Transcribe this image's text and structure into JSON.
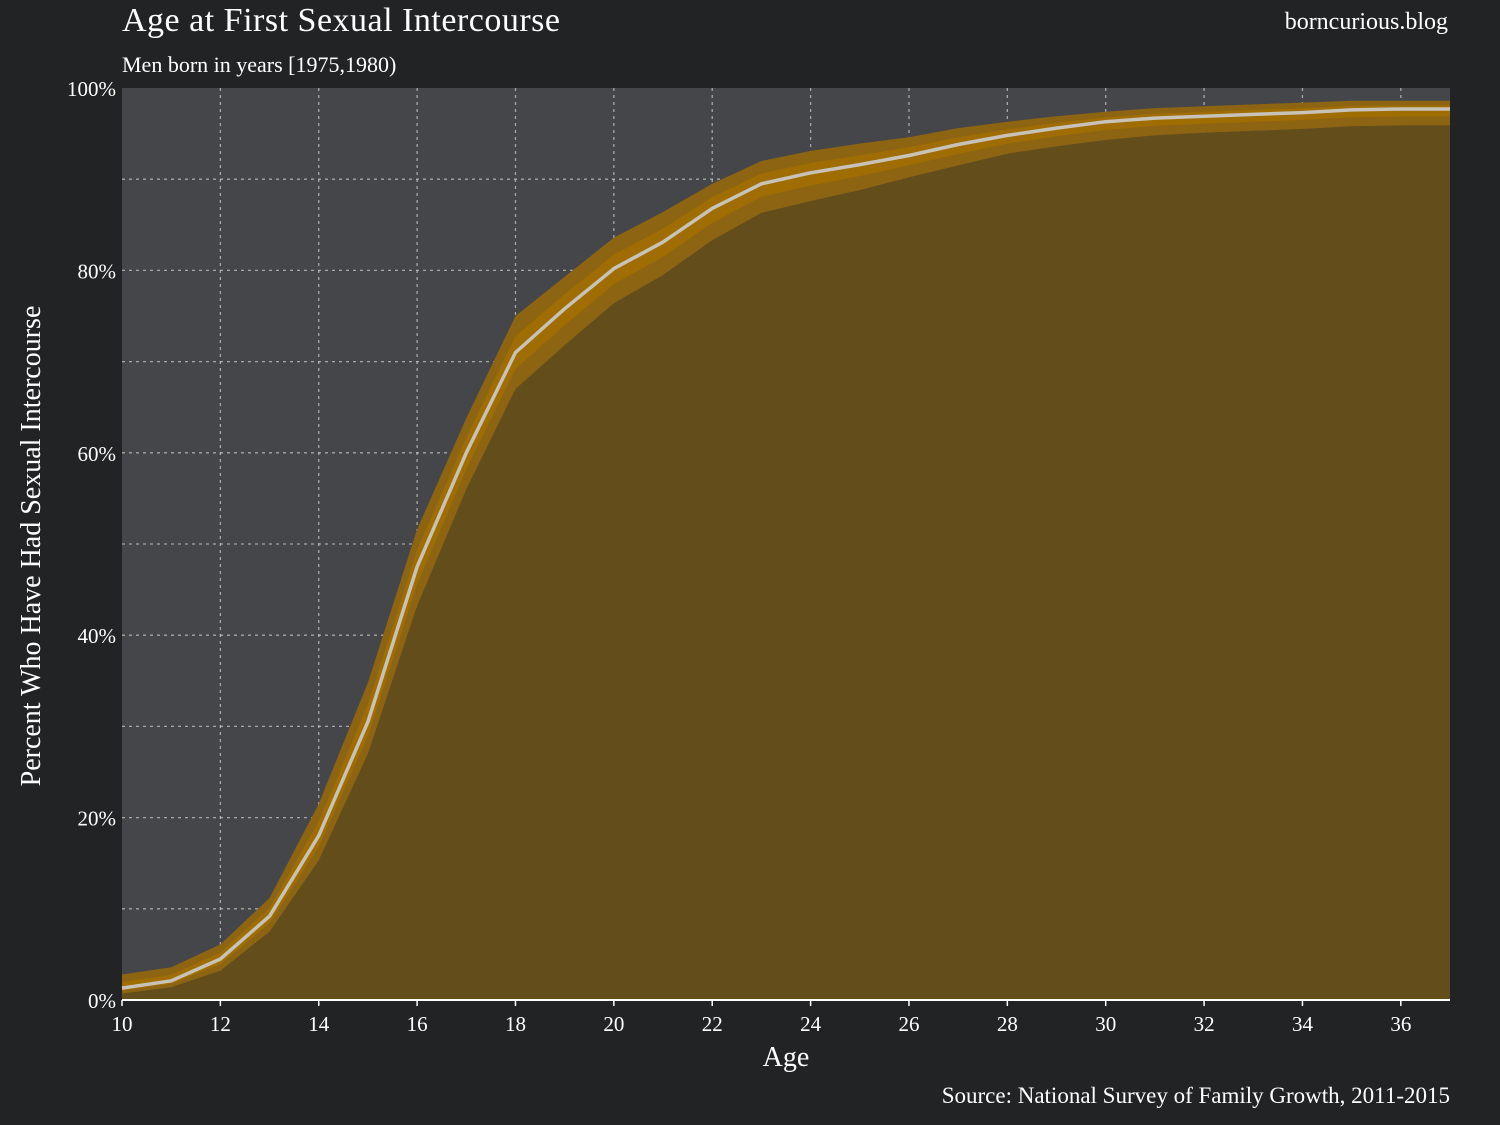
{
  "header": {
    "title": "Age at First Sexual Intercourse",
    "subtitle": "Men born in years [1975,1980)",
    "brand": "borncurious.blog"
  },
  "footer": {
    "source": "Source: National Survey of Family Growth, 2011-2015"
  },
  "colors": {
    "background": "#222325",
    "plot_background": "#45464a",
    "fill": "#634d1a",
    "band": "#8c6412",
    "band_core": "#a36e00",
    "line": "#c8c3b8",
    "grid": "#c8c8c8"
  },
  "chart_data": {
    "type": "area",
    "title": "Age at First Sexual Intercourse",
    "subtitle": "Men born in years [1975,1980)",
    "xlabel": "Age",
    "ylabel": "Percent Who Have Had Sexual Intercourse",
    "xlim": [
      10,
      37
    ],
    "ylim": [
      0,
      100
    ],
    "x_ticks": [
      10,
      12,
      14,
      16,
      18,
      20,
      22,
      24,
      26,
      28,
      30,
      32,
      34,
      36
    ],
    "y_ticks": [
      0,
      20,
      40,
      60,
      80,
      100
    ],
    "y_tick_labels": [
      "0%",
      "20%",
      "40%",
      "60%",
      "80%",
      "100%"
    ],
    "grid": true,
    "x": [
      10,
      11,
      12,
      13,
      14,
      15,
      16,
      17,
      18,
      19,
      20,
      21,
      22,
      23,
      24,
      25,
      26,
      27,
      28,
      29,
      30,
      31,
      32,
      33,
      34,
      35,
      36,
      37
    ],
    "series": [
      {
        "values": [
          1.3,
          2.1,
          4.5,
          9.2,
          18,
          30.5,
          47.5,
          60,
          71,
          75.8,
          80.2,
          83.1,
          86.8,
          89.5,
          90.7,
          91.6,
          92.6,
          93.8,
          94.8,
          95.6,
          96.3,
          96.7,
          96.9,
          97.1,
          97.3,
          97.6,
          97.7,
          97.7
        ],
        "lower": [
          0.7,
          1.4,
          3.2,
          7.5,
          15.3,
          27,
          43.2,
          56,
          67,
          71.8,
          76.4,
          79.5,
          83.3,
          86.3,
          87.6,
          88.8,
          90.2,
          91.5,
          92.8,
          93.6,
          94.3,
          94.8,
          95.1,
          95.3,
          95.5,
          95.8,
          95.9,
          95.9
        ],
        "upper": [
          2.8,
          3.6,
          6.1,
          11.2,
          21.5,
          34.8,
          51.6,
          63.8,
          75,
          79.3,
          83.6,
          86.4,
          89.5,
          92,
          93.1,
          93.9,
          94.6,
          95.6,
          96.3,
          96.9,
          97.4,
          97.8,
          98,
          98.2,
          98.4,
          98.6,
          98.6,
          98.6
        ]
      }
    ]
  }
}
